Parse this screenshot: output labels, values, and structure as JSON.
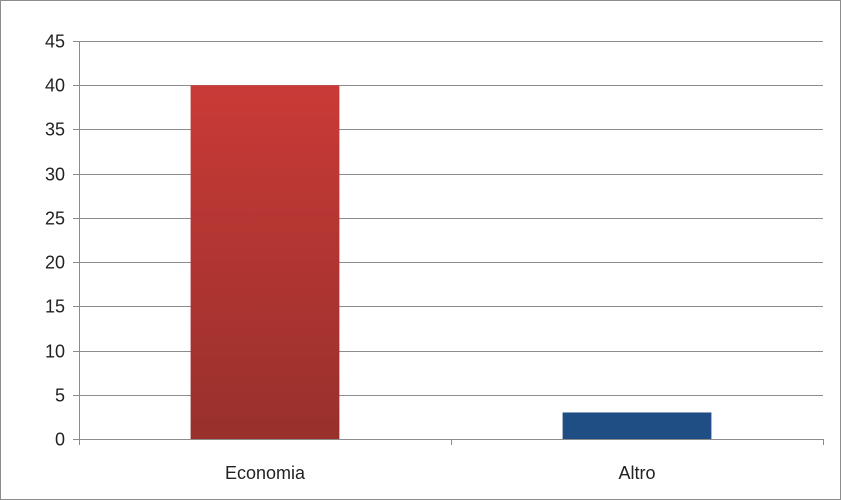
{
  "chart_data": {
    "type": "bar",
    "categories": [
      "Economia",
      "Altro"
    ],
    "values": [
      40,
      3
    ],
    "ylim": [
      0,
      45
    ],
    "yticks": [
      0,
      5,
      10,
      15,
      20,
      25,
      30,
      35,
      40,
      45
    ],
    "grid": true,
    "legend": "none",
    "bar_colors": [
      "#c93a37",
      "#1f4e85"
    ],
    "bar_gradient_dark": [
      "#98302c",
      "#1f4e85"
    ]
  }
}
